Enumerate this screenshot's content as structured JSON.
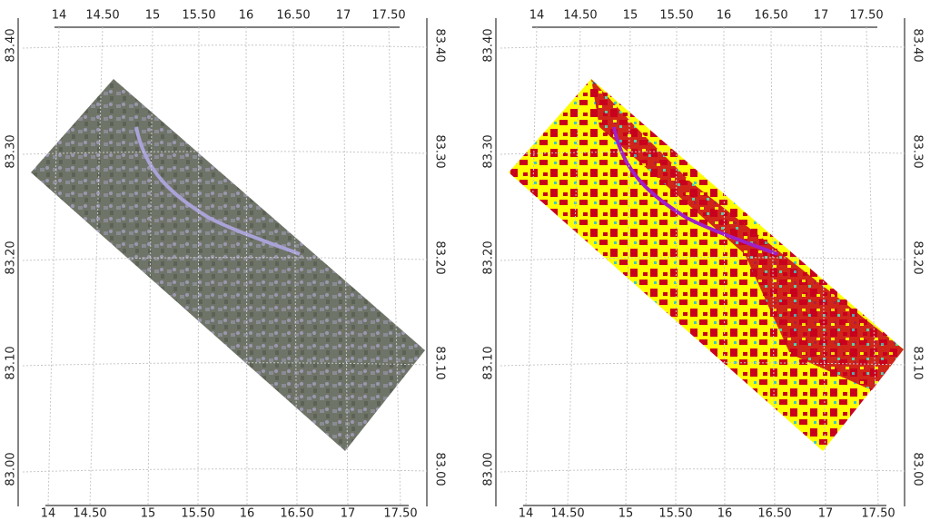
{
  "panels": [
    {
      "lon_labels": [
        "14",
        "14.50",
        "15",
        "15.50",
        "16",
        "16.50",
        "17",
        "17.50"
      ],
      "lat_labels": [
        "83.40",
        "83.30",
        "83.20",
        "83.10",
        "83.00"
      ]
    },
    {
      "lon_labels": [
        "14",
        "14.50",
        "15",
        "15.50",
        "16",
        "16.50",
        "17",
        "17.50"
      ],
      "lat_labels": [
        "83.40",
        "83.30",
        "83.20",
        "83.10",
        "83.00"
      ]
    }
  ]
}
